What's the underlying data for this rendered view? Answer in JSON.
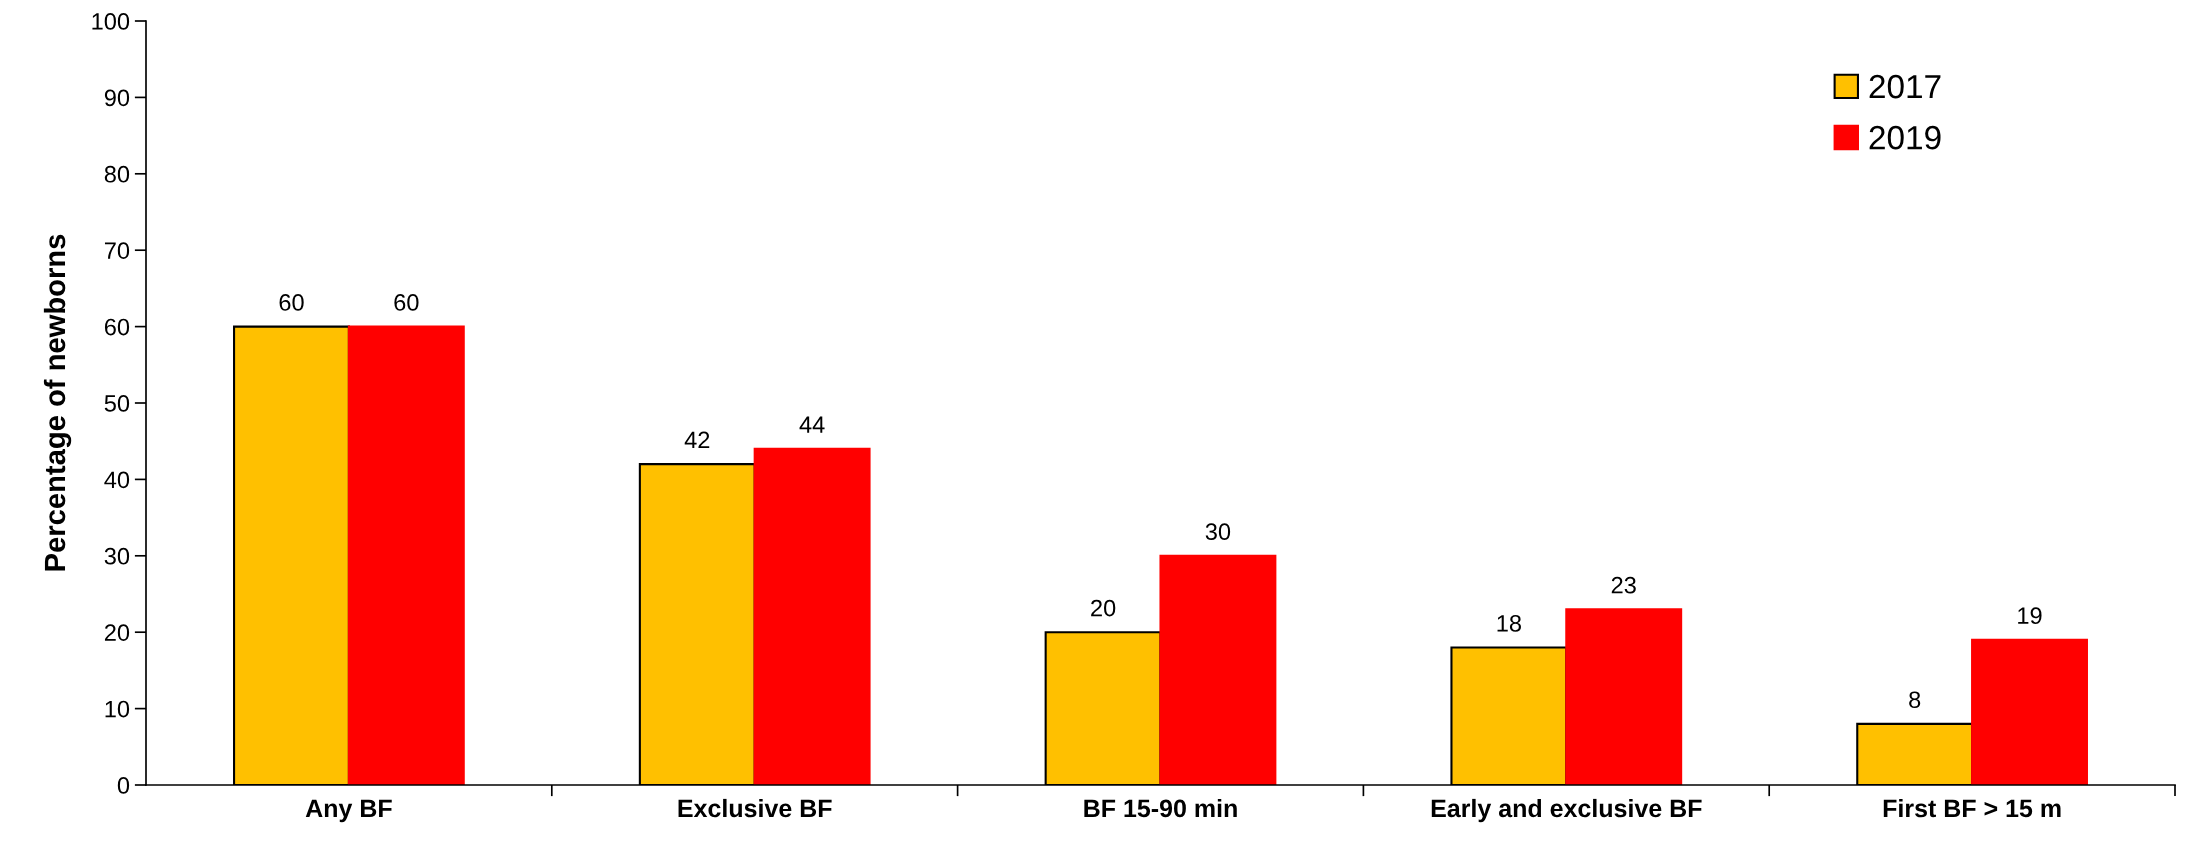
{
  "chart_data": {
    "type": "bar",
    "ylabel": "Percentage of newborns",
    "categories": [
      "Any BF",
      "Exclusive BF",
      "BF 15-90 min",
      "Early and exclusive BF",
      "First BF > 15 m"
    ],
    "series": [
      {
        "name": "2017",
        "color": "#ffc000",
        "values": [
          60,
          42,
          20,
          18,
          8
        ]
      },
      {
        "name": "2019",
        "color": "#ff0000",
        "values": [
          60,
          44,
          30,
          23,
          19
        ]
      }
    ],
    "ylim": [
      0,
      100
    ],
    "yticks": [
      0,
      10,
      20,
      30,
      40,
      50,
      60,
      70,
      80,
      90,
      100
    ],
    "grid": false,
    "legend": "top right",
    "data_labels": true
  }
}
